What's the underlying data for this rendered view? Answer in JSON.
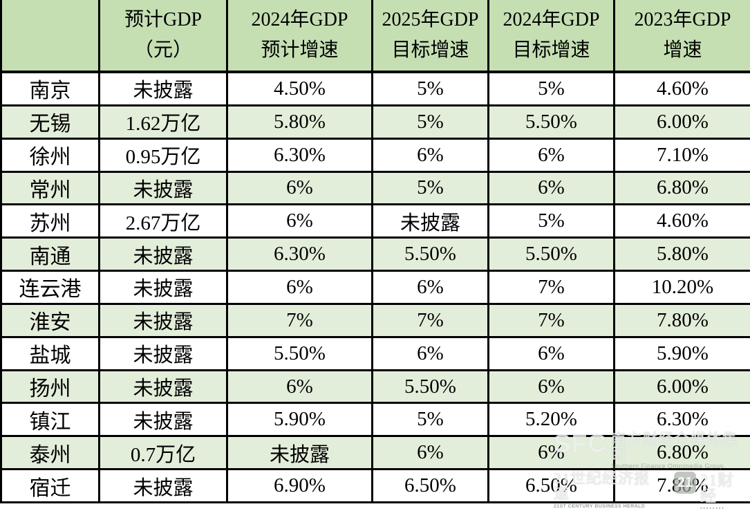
{
  "chart_data": {
    "type": "table",
    "columns": [
      {
        "label": "",
        "line1": "",
        "line2": ""
      },
      {
        "label": "预计GDP（元）",
        "line1": "预计GDP",
        "line2": "（元）"
      },
      {
        "label": "2024年GDP预计增速",
        "line1": "2024年GDP",
        "line2": "预计增速"
      },
      {
        "label": "2025年GDP目标增速",
        "line1": "2025年GDP",
        "line2": "目标增速"
      },
      {
        "label": "2024年GDP目标增速",
        "line1": "2024年GDP",
        "line2": "目标增速"
      },
      {
        "label": "2023年GDP增速",
        "line1": "2023年GDP",
        "line2": "增速"
      }
    ],
    "rows": [
      {
        "city": "南京",
        "values": [
          "未披露",
          "4.50%",
          "5%",
          "5%",
          "4.60%"
        ]
      },
      {
        "city": "无锡",
        "values": [
          "1.62万亿",
          "5.80%",
          "5%",
          "5.50%",
          "6.00%"
        ]
      },
      {
        "city": "徐州",
        "values": [
          "0.95万亿",
          "6.30%",
          "6%",
          "6%",
          "7.10%"
        ]
      },
      {
        "city": "常州",
        "values": [
          "未披露",
          "6%",
          "5%",
          "6%",
          "6.80%"
        ]
      },
      {
        "city": "苏州",
        "values": [
          "2.67万亿",
          "6%",
          "未披露",
          "5%",
          "4.60%"
        ]
      },
      {
        "city": "南通",
        "values": [
          "未披露",
          "6.30%",
          "5.50%",
          "5.50%",
          "5.80%"
        ]
      },
      {
        "city": "连云港",
        "values": [
          "未披露",
          "6%",
          "6%",
          "7%",
          "10.20%"
        ]
      },
      {
        "city": "淮安",
        "values": [
          "未披露",
          "7%",
          "7%",
          "7%",
          "7.80%"
        ]
      },
      {
        "city": "盐城",
        "values": [
          "未披露",
          "5.50%",
          "6%",
          "6%",
          "5.90%"
        ]
      },
      {
        "city": "扬州",
        "values": [
          "未披露",
          "6%",
          "5.50%",
          "6%",
          "6.00%"
        ]
      },
      {
        "city": "镇江",
        "values": [
          "未披露",
          "5.90%",
          "5%",
          "5.20%",
          "6.30%"
        ]
      },
      {
        "city": "泰州",
        "values": [
          "0.7万亿",
          "未披露",
          "6%",
          "6%",
          "6.80%"
        ]
      },
      {
        "city": "宿迁",
        "values": [
          "未披露",
          "6.90%",
          "6.50%",
          "6.50%",
          "7.80%"
        ]
      }
    ],
    "layout": {
      "header_background": "#c5dfb3",
      "stripe_background": "#e3eeda",
      "row_background": "#ffffff",
      "grid_color": "#000000",
      "grid_on": true
    }
  },
  "watermark": {
    "sfc": "SFC",
    "group_cn": "南方财经全媒体集团",
    "group_en": "Southern Finance Omnimedia Group",
    "herald_cn": "21世纪经济报道",
    "herald_en": "21ST CENTURY BUSINESS HERALD",
    "logo_21": "21",
    "brand_21": "21财经",
    "tagline_dots": "▪▪▪▪▪▪▪▪"
  }
}
